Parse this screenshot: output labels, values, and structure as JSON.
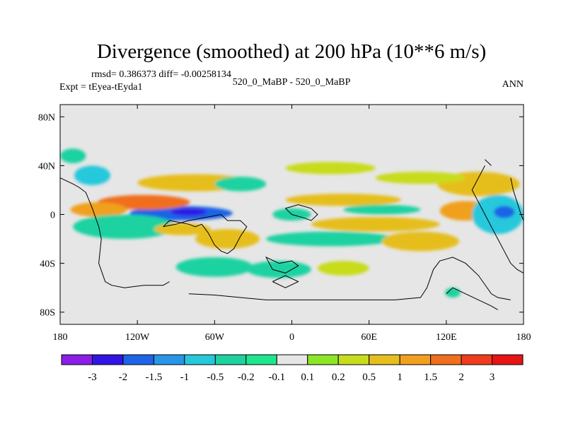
{
  "chart_data": {
    "type": "heatmap",
    "title": "Divergence (smoothed) at 200 hPa (10**6 m/s)",
    "stats": "rmsd= 0.386373 diff= -0.00258134",
    "left_label": "Expt = tEyea-tEyda1",
    "center_label": "520_0_MaBP - 520_0_MaBP",
    "right_label": "ANN",
    "x_ticks": [
      "180",
      "120W",
      "60W",
      "0",
      "60E",
      "120E",
      "180"
    ],
    "x_tick_values": [
      -180,
      -120,
      -60,
      0,
      60,
      120,
      180
    ],
    "y_ticks": [
      "80N",
      "40N",
      "0",
      "40S",
      "80S"
    ],
    "y_tick_values": [
      80,
      40,
      0,
      -40,
      -80
    ],
    "xlim": [
      -180,
      180
    ],
    "ylim": [
      -90,
      90
    ],
    "colorbar": {
      "colors": [
        "#8c1ee6",
        "#3214e6",
        "#1e64e6",
        "#2896e6",
        "#28c8dc",
        "#1ed2a0",
        "#1ee68c",
        "#e6e6e6",
        "#8ce628",
        "#c8dc1e",
        "#e6be1e",
        "#f0a01e",
        "#f06e1e",
        "#f03c1e",
        "#e61414"
      ],
      "labels": [
        "-3",
        "-2",
        "-1.5",
        "-1",
        "-0.5",
        "-0.2",
        "-0.1",
        "0.1",
        "0.2",
        "0.5",
        "1",
        "1.5",
        "2",
        "3"
      ]
    },
    "regions": [
      {
        "lon": -86,
        "lat": 1,
        "rx": 40,
        "ry": 6,
        "value": -1.6
      },
      {
        "lon": -80,
        "lat": 2,
        "rx": 14,
        "ry": 3,
        "value": -3.0
      },
      {
        "lon": -115,
        "lat": 10,
        "rx": 36,
        "ry": 6,
        "value": 1.6
      },
      {
        "lon": -75,
        "lat": 26,
        "rx": 45,
        "ry": 7,
        "value": 0.7
      },
      {
        "lon": -150,
        "lat": 4,
        "rx": 22,
        "ry": 6,
        "value": 1.2
      },
      {
        "lon": -155,
        "lat": 32,
        "rx": 14,
        "ry": 8,
        "value": -0.6
      },
      {
        "lon": -130,
        "lat": -10,
        "rx": 40,
        "ry": 10,
        "value": -0.5
      },
      {
        "lon": -85,
        "lat": -12,
        "rx": 22,
        "ry": 5,
        "value": 0.9
      },
      {
        "lon": -50,
        "lat": -20,
        "rx": 25,
        "ry": 8,
        "value": 0.5
      },
      {
        "lon": -40,
        "lat": 25,
        "rx": 20,
        "ry": 6,
        "value": -0.5
      },
      {
        "lon": 0,
        "lat": 0,
        "rx": 15,
        "ry": 5,
        "value": -0.5
      },
      {
        "lon": 40,
        "lat": 12,
        "rx": 45,
        "ry": 5,
        "value": 0.6
      },
      {
        "lon": 65,
        "lat": -8,
        "rx": 50,
        "ry": 6,
        "value": 0.8
      },
      {
        "lon": 70,
        "lat": 4,
        "rx": 30,
        "ry": 4,
        "value": -0.5
      },
      {
        "lon": 30,
        "lat": -20,
        "rx": 50,
        "ry": 6,
        "value": -0.5
      },
      {
        "lon": 100,
        "lat": -22,
        "rx": 30,
        "ry": 8,
        "value": 0.5
      },
      {
        "lon": 135,
        "lat": 3,
        "rx": 20,
        "ry": 8,
        "value": 1.4
      },
      {
        "lon": 160,
        "lat": 0,
        "rx": 20,
        "ry": 16,
        "value": -0.9
      },
      {
        "lon": 165,
        "lat": 2,
        "rx": 8,
        "ry": 5,
        "value": -1.8
      },
      {
        "lon": 145,
        "lat": 25,
        "rx": 32,
        "ry": 10,
        "value": 0.8
      },
      {
        "lon": -60,
        "lat": -43,
        "rx": 30,
        "ry": 8,
        "value": -0.5
      },
      {
        "lon": -10,
        "lat": -45,
        "rx": 25,
        "ry": 7,
        "value": -0.5
      },
      {
        "lon": 40,
        "lat": -44,
        "rx": 20,
        "ry": 6,
        "value": 0.3
      },
      {
        "lon": 100,
        "lat": 30,
        "rx": 35,
        "ry": 5,
        "value": 0.4
      },
      {
        "lon": -170,
        "lat": 48,
        "rx": 10,
        "ry": 6,
        "value": -0.3
      },
      {
        "lon": 30,
        "lat": 38,
        "rx": 35,
        "ry": 5,
        "value": 0.3
      },
      {
        "lon": 125,
        "lat": -64,
        "rx": 6,
        "ry": 4,
        "value": -0.3
      }
    ],
    "land_polylines": [
      [
        [
          -180,
          30
        ],
        [
          -170,
          25
        ],
        [
          -165,
          22
        ],
        [
          -160,
          18
        ],
        [
          -155,
          5
        ],
        [
          -150,
          -10
        ],
        [
          -148,
          -20
        ],
        [
          -150,
          -40
        ],
        [
          -145,
          -55
        ],
        [
          -140,
          -58
        ],
        [
          -130,
          -60
        ],
        [
          -115,
          -58
        ],
        [
          -100,
          -58
        ],
        [
          -95,
          -55
        ]
      ],
      [
        [
          -100,
          -10
        ],
        [
          -95,
          -5
        ],
        [
          -80,
          -8
        ],
        [
          -75,
          -10
        ],
        [
          -70,
          -8
        ],
        [
          -65,
          -15
        ],
        [
          -60,
          -25
        ],
        [
          -55,
          -30
        ],
        [
          -50,
          -32
        ],
        [
          -45,
          -28
        ],
        [
          -40,
          -18
        ],
        [
          -35,
          -10
        ],
        [
          -40,
          -5
        ],
        [
          -50,
          -5
        ],
        [
          -55,
          0
        ],
        [
          -70,
          -3
        ],
        [
          -80,
          -5
        ],
        [
          -90,
          -8
        ],
        [
          -100,
          -10
        ]
      ],
      [
        [
          -10,
          -40
        ],
        [
          -20,
          -35
        ],
        [
          -15,
          -45
        ],
        [
          -5,
          -48
        ],
        [
          5,
          -42
        ],
        [
          0,
          -38
        ],
        [
          -10,
          -40
        ]
      ],
      [
        [
          -15,
          -55
        ],
        [
          -5,
          -50
        ],
        [
          5,
          -55
        ],
        [
          -5,
          -60
        ],
        [
          -15,
          -55
        ]
      ],
      [
        [
          -80,
          -65
        ],
        [
          -60,
          -66
        ],
        [
          -40,
          -68
        ],
        [
          -20,
          -70
        ],
        [
          0,
          -70
        ],
        [
          20,
          -70
        ],
        [
          40,
          -70
        ],
        [
          60,
          -70
        ],
        [
          80,
          -70
        ],
        [
          100,
          -68
        ],
        [
          105,
          -60
        ],
        [
          110,
          -45
        ],
        [
          115,
          -38
        ],
        [
          125,
          -35
        ],
        [
          135,
          -40
        ],
        [
          145,
          -50
        ],
        [
          155,
          -65
        ],
        [
          160,
          -68
        ],
        [
          170,
          -70
        ]
      ],
      [
        [
          150,
          40
        ],
        [
          145,
          30
        ],
        [
          140,
          20
        ],
        [
          145,
          10
        ],
        [
          150,
          0
        ],
        [
          155,
          -10
        ],
        [
          160,
          -20
        ],
        [
          165,
          -30
        ],
        [
          170,
          -40
        ],
        [
          175,
          -45
        ],
        [
          180,
          -48
        ]
      ],
      [
        [
          170,
          30
        ],
        [
          172,
          20
        ],
        [
          175,
          10
        ],
        [
          178,
          0
        ],
        [
          180,
          -5
        ]
      ],
      [
        [
          -5,
          5
        ],
        [
          5,
          8
        ],
        [
          15,
          5
        ],
        [
          20,
          0
        ],
        [
          15,
          -5
        ],
        [
          10,
          -3
        ],
        [
          0,
          0
        ],
        [
          -5,
          5
        ]
      ],
      [
        [
          150,
          45
        ],
        [
          155,
          40
        ]
      ],
      [
        [
          120,
          -65
        ],
        [
          125,
          -60
        ],
        [
          135,
          -65
        ],
        [
          145,
          -70
        ],
        [
          155,
          -75
        ],
        [
          160,
          -78
        ]
      ]
    ]
  }
}
